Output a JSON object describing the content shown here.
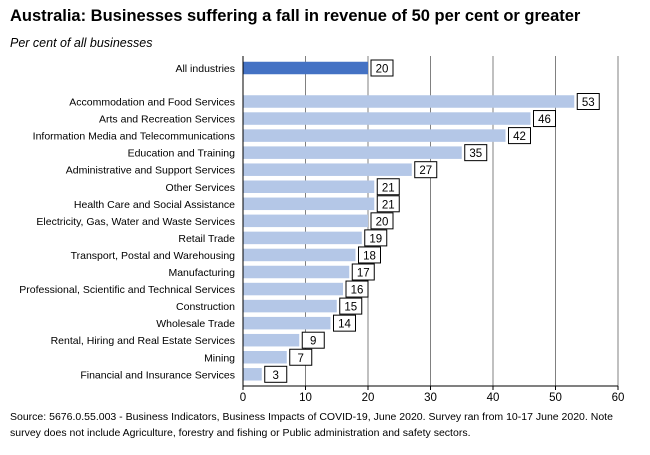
{
  "chart_data": {
    "type": "bar",
    "orientation": "horizontal",
    "title": "Australia: Businesses suffering a fall in revenue of 50 per cent or greater",
    "subtitle": "Per cent of all businesses",
    "categories": [
      "All industries",
      "Accommodation and Food Services",
      "Arts and Recreation Services",
      "Information Media and Telecommunications",
      "Education and Training",
      "Administrative and Support Services",
      "Other Services",
      "Health Care and Social Assistance",
      "Electricity, Gas, Water and Waste Services",
      "Retail Trade",
      "Transport, Postal and Warehousing",
      "Manufacturing",
      "Professional, Scientific and Technical Services",
      "Construction",
      "Wholesale Trade",
      "Rental, Hiring and Real Estate Services",
      "Mining",
      "Financial and Insurance Services"
    ],
    "values": [
      20,
      53,
      46,
      42,
      35,
      27,
      21,
      21,
      20,
      19,
      18,
      17,
      16,
      15,
      14,
      9,
      7,
      3
    ],
    "highlight_category": "All industries",
    "xlim": [
      0,
      60
    ],
    "xticks": [
      0,
      10,
      20,
      30,
      40,
      50,
      60
    ],
    "grid": "vertical",
    "xlabel": "",
    "ylabel": "",
    "colors": {
      "highlight": "#4472c4",
      "bars": "#b4c7e7",
      "grid": "#808080"
    }
  },
  "source_note": "Source: 5676.0.55.003 - Business Indicators, Business Impacts of COVID-19, June 2020.  Survey ran from 10-17 June 2020.  Note survey does not include Agriculture, forestry and fishing or Public administration and safety sectors."
}
